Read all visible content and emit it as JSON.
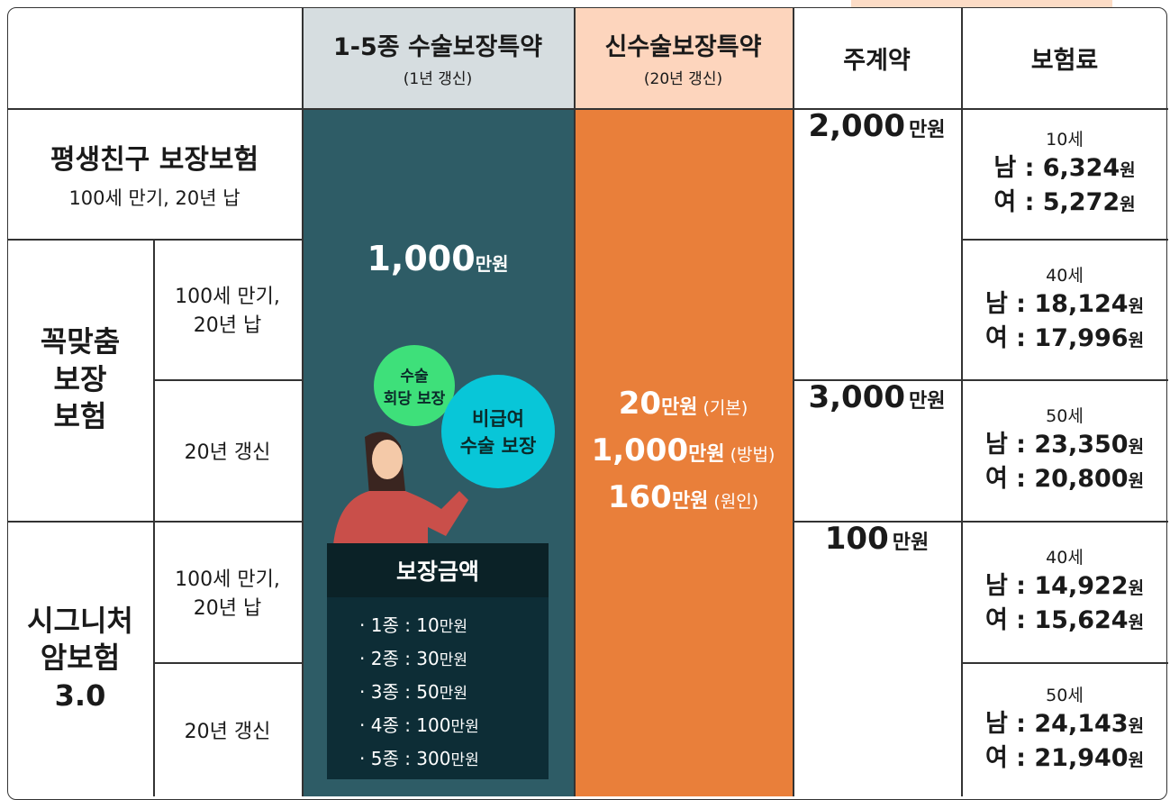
{
  "header": {
    "col1": {
      "title": "1-5종 수술보장특약",
      "sub": "(1년 갱신)"
    },
    "col2": {
      "title": "신수술보장특약",
      "sub": "(20년 갱신)"
    },
    "col3": "주계약",
    "col4": "보험료"
  },
  "unit_manwon": "만원",
  "premium_unit": "원",
  "products": [
    {
      "name": "평생친구 보장보험",
      "term": "100세 만기, 20년 납"
    },
    {
      "name": "꼭맞춤\n보장\n보험",
      "terms": [
        "100세 만기,\n20년 납",
        "20년 갱신"
      ]
    },
    {
      "name": "시그니처\n암보험\n3.0",
      "terms": [
        "100세 만기,\n20년 납",
        "20년 갱신"
      ]
    }
  ],
  "surgery_rider": {
    "amount": "1,000",
    "bubble1": "수술\n회당 보장",
    "bubble2": "비급여\n수술 보장",
    "box_title": "보장금액",
    "items": [
      {
        "label": "· 1종 : 10"
      },
      {
        "label": "· 2종 : 30"
      },
      {
        "label": "· 3종 : 50"
      },
      {
        "label": "· 4종 : 100"
      },
      {
        "label": "· 5종 : 300"
      }
    ]
  },
  "new_rider": [
    {
      "amount": "20",
      "note": "(기본)"
    },
    {
      "amount": "1,000",
      "note": "(방법)"
    },
    {
      "amount": "160",
      "note": "(원인)"
    }
  ],
  "main_contract": [
    "2,000",
    "3,000",
    "100"
  ],
  "premiums": [
    {
      "age": "10세",
      "male": "남 : 6,324",
      "female": "여 : 5,272"
    },
    {
      "age": "40세",
      "male": "남 : 18,124",
      "female": "여 : 17,996"
    },
    {
      "age": "50세",
      "male": "남 : 23,350",
      "female": "여 : 20,800"
    },
    {
      "age": "40세",
      "male": "남 : 14,922",
      "female": "여 : 15,624"
    },
    {
      "age": "50세",
      "male": "남 : 24,143",
      "female": "여 : 21,940"
    }
  ]
}
